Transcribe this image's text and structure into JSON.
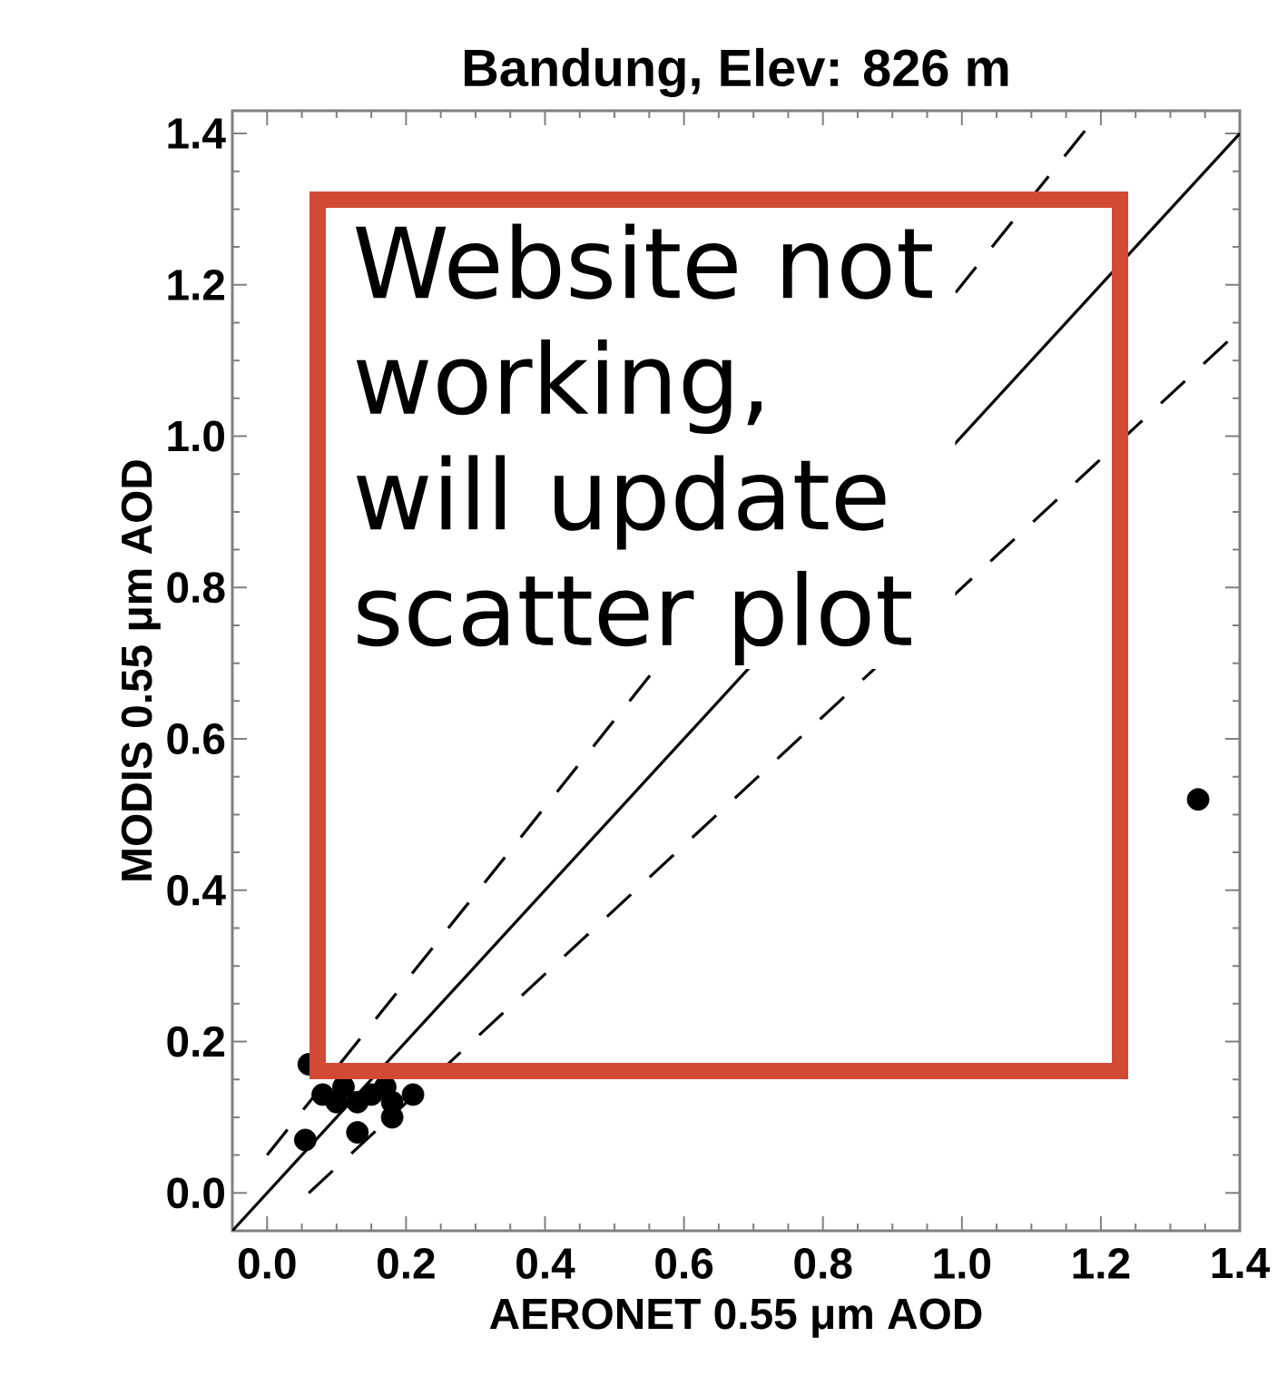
{
  "chart_data": {
    "type": "scatter",
    "title": "Bandung, Elev: 826 m",
    "xlabel": "AERONET 0.55 μm AOD",
    "ylabel": "MODIS 0.55 μm AOD",
    "xlim": [
      -0.05,
      1.4
    ],
    "ylim": [
      -0.05,
      1.43
    ],
    "xticks": [
      {
        "value": 0,
        "label": "0.0"
      },
      {
        "value": 0.2,
        "label": "0.2"
      },
      {
        "value": 0.4,
        "label": "0.4"
      },
      {
        "value": 0.6,
        "label": "0.6"
      },
      {
        "value": 0.8,
        "label": "0.8"
      },
      {
        "value": 1.0,
        "label": "1.0"
      },
      {
        "value": 1.2,
        "label": "1.2"
      },
      {
        "value": 1.4,
        "label": "1.4"
      }
    ],
    "yticks": [
      {
        "value": 0,
        "label": "0.0"
      },
      {
        "value": 0.2,
        "label": "0.2"
      },
      {
        "value": 0.4,
        "label": "0.4"
      },
      {
        "value": 0.6,
        "label": "0.6"
      },
      {
        "value": 0.8,
        "label": "0.8"
      },
      {
        "value": 1.0,
        "label": "1.0"
      },
      {
        "value": 1.2,
        "label": "1.2"
      },
      {
        "value": 1.4,
        "label": "1.4"
      }
    ],
    "grid": false,
    "series": [
      {
        "type": "line",
        "marker": "none",
        "line_style": "solid",
        "color": "#000000",
        "x": [
          -0.05,
          1.4
        ],
        "values": [
          -0.05,
          1.4
        ]
      },
      {
        "type": "line",
        "marker": "none",
        "line_style": "dashed",
        "color": "#000000",
        "x": [
          0.0,
          1.2
        ],
        "values": [
          0.05,
          1.43
        ]
      },
      {
        "type": "line",
        "marker": "none",
        "line_style": "dashed",
        "color": "#000000",
        "x": [
          0.06,
          1.4
        ],
        "values": [
          0.0,
          1.14
        ]
      },
      {
        "marker": "circle",
        "color": "#000000",
        "x": [
          0.055,
          0.13,
          0.18,
          0.08,
          0.1,
          0.11,
          0.13,
          0.15,
          0.17,
          0.18,
          0.21,
          0.06,
          1.34
        ],
        "values": [
          0.07,
          0.08,
          0.1,
          0.13,
          0.12,
          0.14,
          0.12,
          0.13,
          0.14,
          0.12,
          0.13,
          0.17,
          0.52
        ]
      }
    ],
    "annotations": [
      "Website not working, will update scatter plot"
    ]
  }
}
